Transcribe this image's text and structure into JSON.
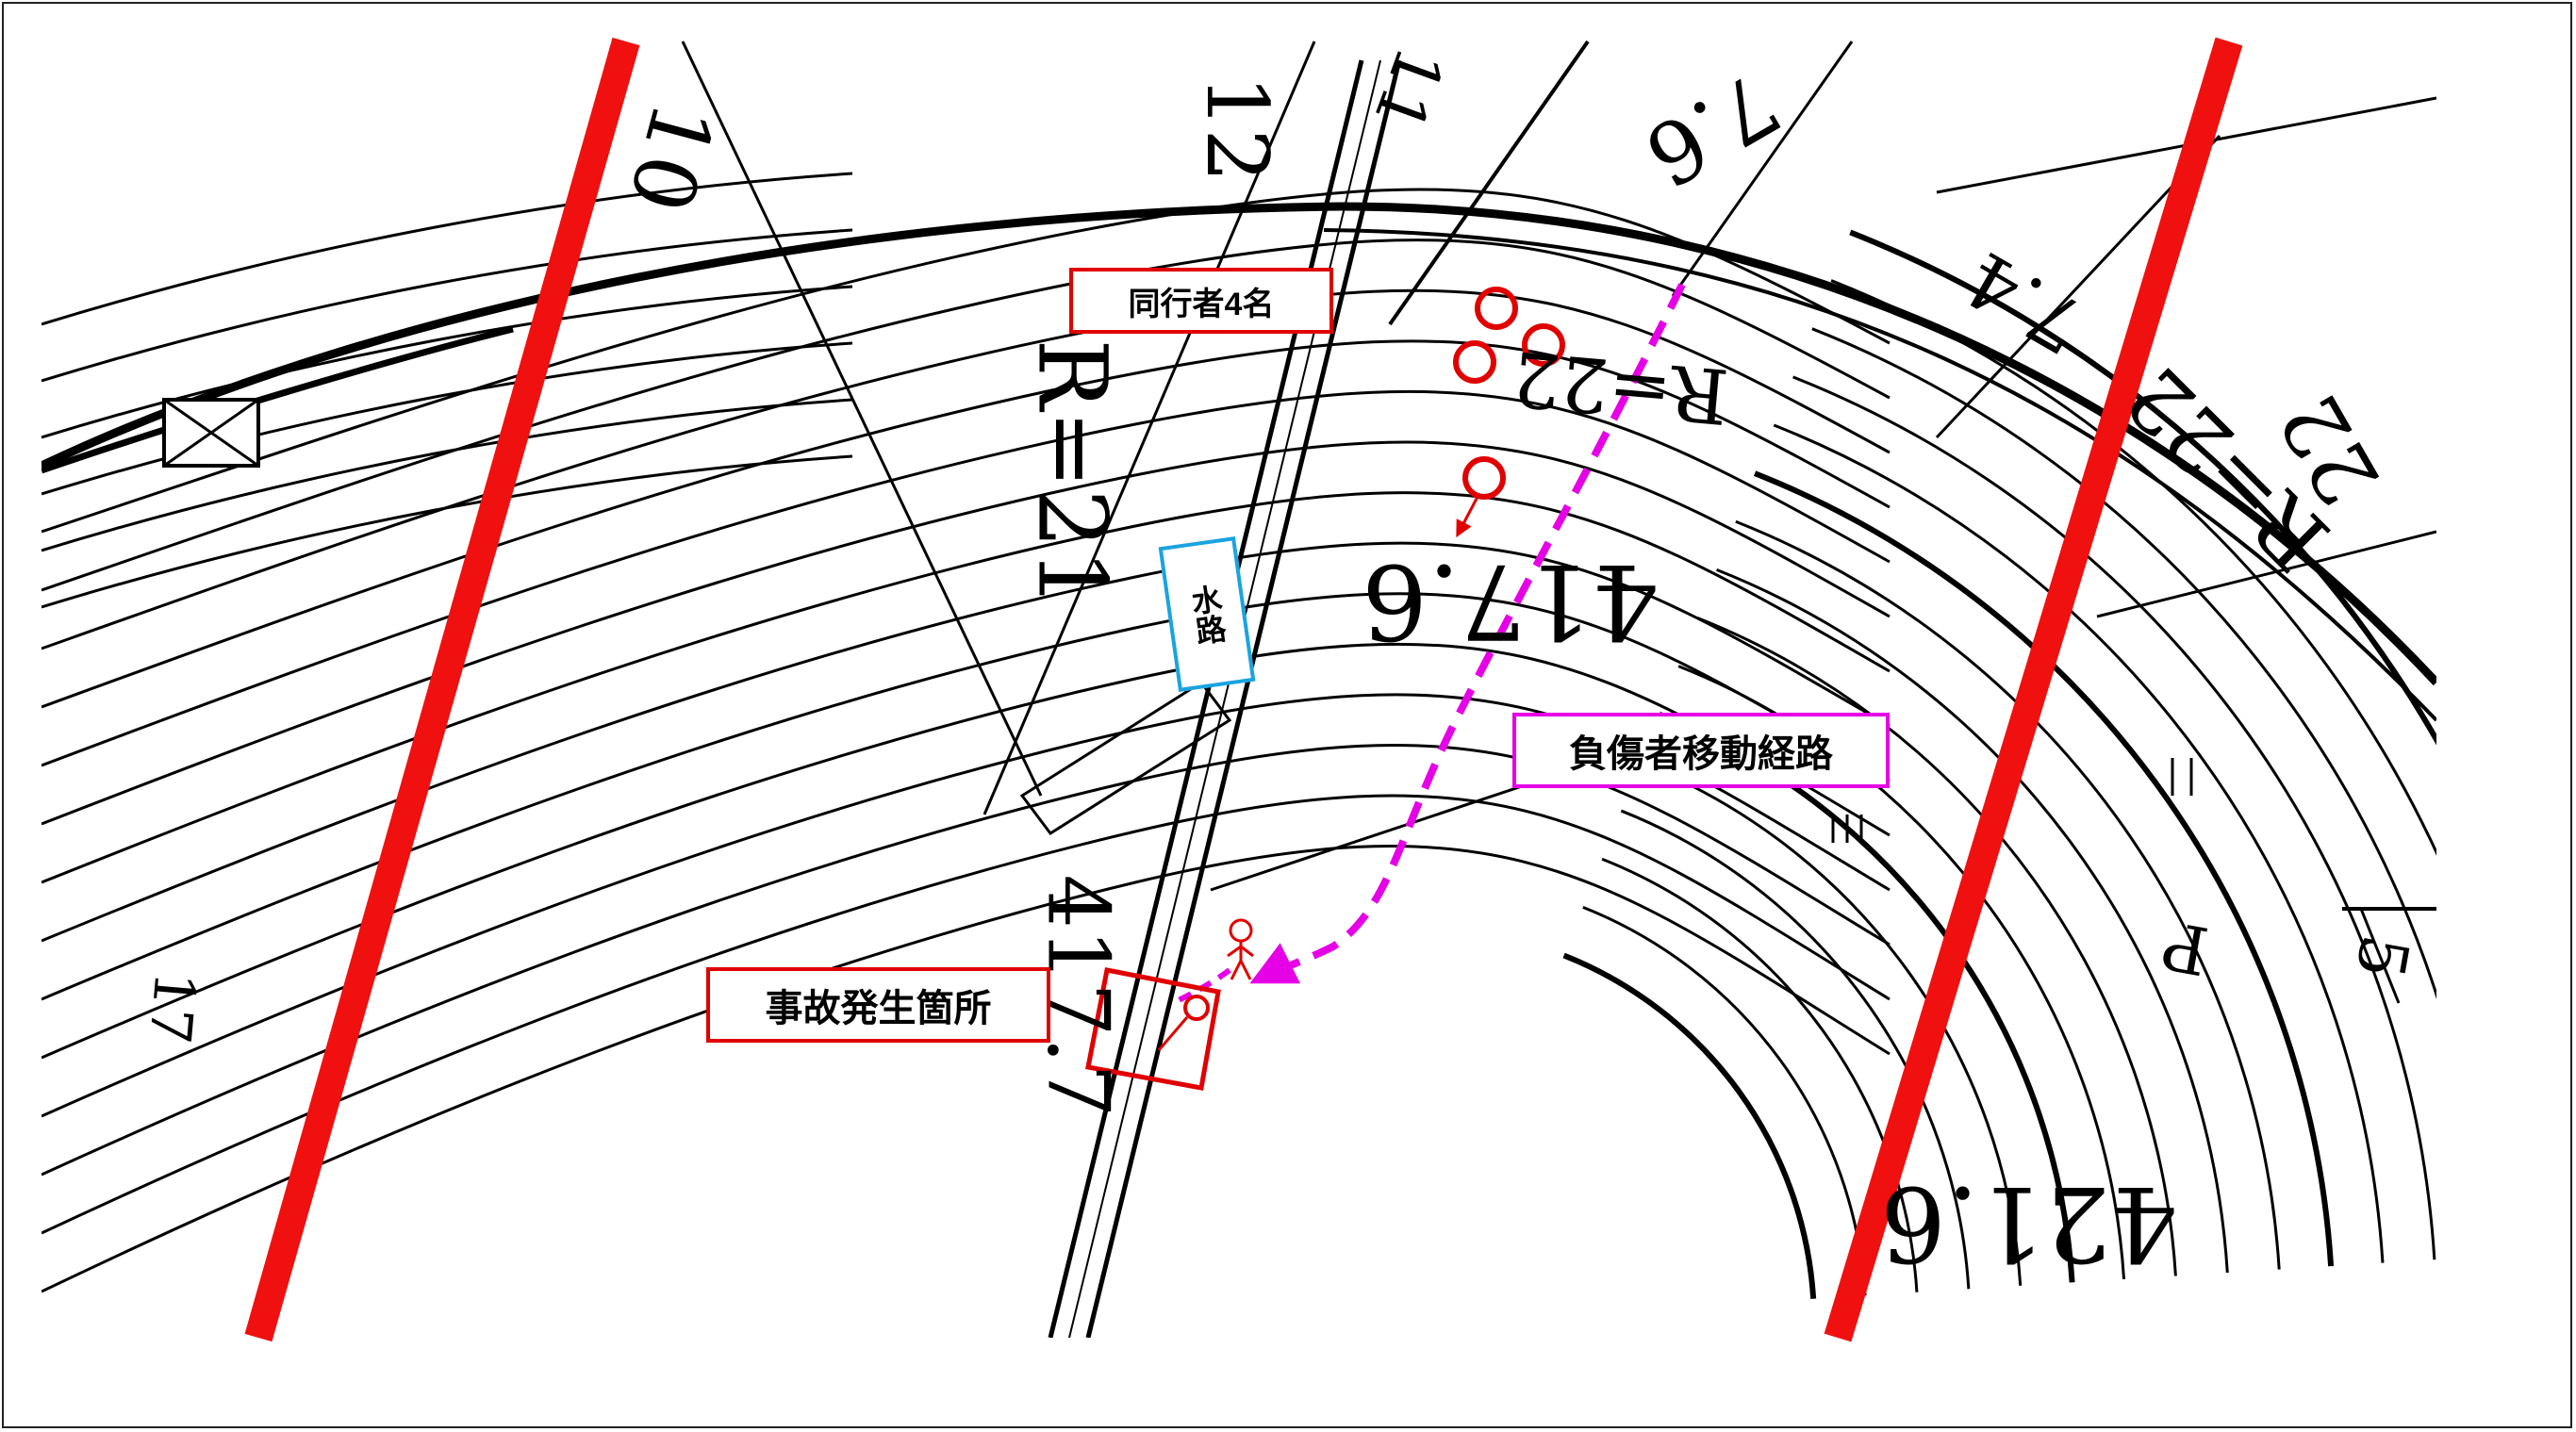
{
  "labels": {
    "companions": "同行者4名",
    "waterway": "水路",
    "injured_route": "負傷者移動経路",
    "accident_site": "事故発生箇所"
  },
  "plan_text": {
    "r21": "R=21",
    "r22_right": "R=22",
    "r22_center": "R=22",
    "elev_4176": "417.6",
    "elev_4216": "421.6",
    "elev_4177": "417.7",
    "dim_10": "10",
    "dim_12": "12",
    "dim_76": "7.6",
    "dim_74": "7.4",
    "dim_22": "22",
    "mark_17": "17",
    "mark_5": "5",
    "mark_p": "P",
    "mark_11": "11"
  },
  "colors": {
    "red_line": "#f01010",
    "marker_red": "#e00000",
    "route_magenta": "#e600e6",
    "label_blue_border": "#1aa3e0",
    "line_black": "#000000"
  }
}
